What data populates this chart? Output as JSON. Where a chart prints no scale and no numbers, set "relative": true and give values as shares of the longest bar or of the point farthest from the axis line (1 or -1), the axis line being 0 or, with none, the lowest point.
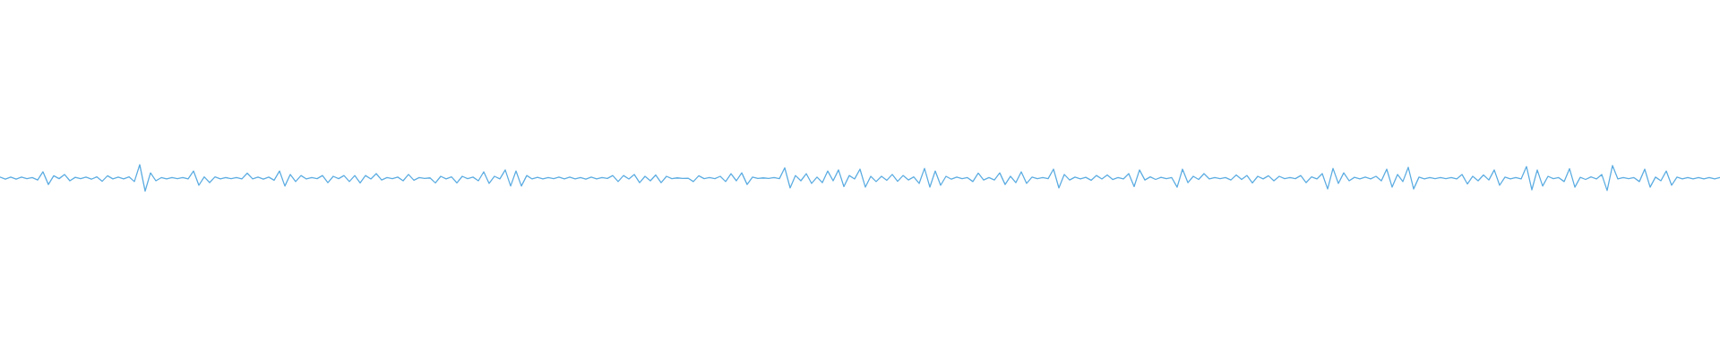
{
  "chart_data": {
    "type": "line",
    "relative": true,
    "color": "#5dade2",
    "categories": [
      null,
      null,
      null,
      null,
      null,
      null,
      null,
      null,
      null,
      null,
      null,
      null,
      null,
      null,
      null,
      null,
      null,
      null,
      null,
      null,
      null,
      null,
      null,
      null,
      null,
      null,
      null,
      null,
      null,
      null,
      null,
      null,
      null,
      null,
      null,
      null,
      null,
      null,
      null,
      null,
      null,
      null,
      null,
      null,
      null,
      null,
      null,
      null,
      null,
      null,
      null,
      null,
      null,
      null,
      null,
      null,
      null,
      null,
      null,
      null,
      null,
      null,
      null,
      null,
      null,
      null,
      null,
      null,
      null,
      null,
      null,
      null,
      null,
      null,
      null,
      null,
      null,
      null,
      null,
      null,
      null,
      null,
      null,
      null,
      null,
      null,
      null,
      null,
      null,
      null,
      null,
      null,
      null,
      null,
      null,
      null,
      null,
      null,
      null,
      null,
      null,
      null,
      null,
      null,
      null,
      null,
      null,
      null,
      null,
      null,
      null,
      null,
      null,
      null,
      null,
      null,
      null,
      null,
      null,
      null,
      null,
      null,
      null,
      null,
      null,
      null,
      null,
      null,
      null,
      null,
      null,
      null,
      null,
      null,
      null,
      null,
      null,
      null,
      null,
      null,
      null,
      null,
      null,
      null,
      null,
      null,
      null,
      null,
      null,
      null,
      null,
      null,
      null,
      null,
      null,
      null,
      null,
      null,
      null,
      null,
      null,
      null,
      null,
      null,
      null,
      null,
      null,
      null,
      null,
      null,
      null,
      null,
      null,
      null,
      null,
      null,
      null,
      null,
      null,
      null,
      null,
      null,
      null,
      null,
      null,
      null,
      null,
      null,
      null,
      null,
      null,
      null,
      null,
      null,
      null,
      null,
      null,
      null,
      null,
      null,
      null,
      null,
      null,
      null,
      null,
      null,
      null,
      null,
      null,
      null,
      null,
      null,
      null,
      null,
      null,
      null,
      null,
      null,
      null,
      null,
      null,
      null,
      null,
      null,
      null,
      null,
      null,
      null,
      null,
      null,
      null,
      null,
      null,
      null,
      null,
      null,
      null,
      null,
      null,
      null,
      null,
      null,
      null,
      null,
      null,
      null,
      null,
      null,
      null,
      null,
      null,
      null,
      null,
      null,
      null,
      null,
      null,
      null,
      null,
      null,
      null,
      null,
      null,
      null,
      null,
      null,
      null,
      null,
      null,
      null,
      null,
      null,
      null,
      null,
      null,
      null,
      null,
      null,
      null,
      null,
      null,
      null,
      null,
      null,
      null,
      null,
      null,
      null,
      null,
      null,
      null,
      null,
      null,
      null,
      null,
      null,
      null,
      null,
      null,
      null,
      null,
      null,
      null,
      null,
      null,
      null,
      null,
      null,
      null,
      null,
      null,
      null,
      null,
      null,
      null,
      null,
      null,
      null,
      null,
      null,
      null
    ],
    "values": [
      0.53,
      0.45,
      0.53,
      0.45,
      0.53,
      0.47,
      0.51,
      0.42,
      0.73,
      0.25,
      0.58,
      0.47,
      0.63,
      0.39,
      0.52,
      0.47,
      0.53,
      0.45,
      0.54,
      0.37,
      0.58,
      0.46,
      0.53,
      0.46,
      0.54,
      0.36,
      1.0,
      0.0,
      0.69,
      0.39,
      0.51,
      0.46,
      0.51,
      0.47,
      0.51,
      0.46,
      0.76,
      0.22,
      0.54,
      0.32,
      0.54,
      0.46,
      0.51,
      0.47,
      0.51,
      0.46,
      0.68,
      0.46,
      0.53,
      0.45,
      0.53,
      0.41,
      0.76,
      0.19,
      0.63,
      0.36,
      0.59,
      0.46,
      0.51,
      0.47,
      0.59,
      0.32,
      0.56,
      0.47,
      0.59,
      0.36,
      0.59,
      0.31,
      0.59,
      0.46,
      0.66,
      0.42,
      0.51,
      0.47,
      0.53,
      0.39,
      0.63,
      0.41,
      0.51,
      0.48,
      0.5,
      0.31,
      0.56,
      0.46,
      0.54,
      0.31,
      0.56,
      0.47,
      0.53,
      0.39,
      0.73,
      0.29,
      0.56,
      0.46,
      0.8,
      0.19,
      0.76,
      0.19,
      0.59,
      0.46,
      0.52,
      0.46,
      0.51,
      0.47,
      0.53,
      0.46,
      0.53,
      0.46,
      0.51,
      0.45,
      0.53,
      0.46,
      0.51,
      0.48,
      0.59,
      0.36,
      0.59,
      0.46,
      0.63,
      0.32,
      0.56,
      0.39,
      0.61,
      0.32,
      0.56,
      0.47,
      0.5,
      0.48,
      0.49,
      0.36,
      0.58,
      0.47,
      0.51,
      0.47,
      0.56,
      0.36,
      0.66,
      0.39,
      0.69,
      0.25,
      0.53,
      0.48,
      0.5,
      0.48,
      0.51,
      0.47,
      0.88,
      0.12,
      0.59,
      0.39,
      0.66,
      0.29,
      0.53,
      0.32,
      0.76,
      0.39,
      0.8,
      0.17,
      0.59,
      0.46,
      0.83,
      0.15,
      0.56,
      0.36,
      0.56,
      0.41,
      0.63,
      0.37,
      0.59,
      0.42,
      0.54,
      0.29,
      0.86,
      0.15,
      0.76,
      0.22,
      0.56,
      0.45,
      0.53,
      0.47,
      0.51,
      0.36,
      0.68,
      0.42,
      0.51,
      0.42,
      0.69,
      0.25,
      0.56,
      0.32,
      0.73,
      0.29,
      0.53,
      0.47,
      0.51,
      0.47,
      0.83,
      0.12,
      0.63,
      0.42,
      0.53,
      0.46,
      0.52,
      0.41,
      0.59,
      0.46,
      0.61,
      0.44,
      0.51,
      0.46,
      0.66,
      0.17,
      0.8,
      0.42,
      0.54,
      0.44,
      0.52,
      0.47,
      0.51,
      0.15,
      0.83,
      0.32,
      0.56,
      0.44,
      0.66,
      0.46,
      0.51,
      0.47,
      0.51,
      0.42,
      0.61,
      0.44,
      0.59,
      0.31,
      0.56,
      0.46,
      0.58,
      0.39,
      0.56,
      0.47,
      0.51,
      0.47,
      0.59,
      0.32,
      0.54,
      0.46,
      0.66,
      0.08,
      0.86,
      0.29,
      0.69,
      0.39,
      0.52,
      0.46,
      0.53,
      0.46,
      0.56,
      0.39,
      0.83,
      0.15,
      0.63,
      0.36,
      0.9,
      0.08,
      0.53,
      0.46,
      0.51,
      0.47,
      0.51,
      0.47,
      0.51,
      0.46,
      0.63,
      0.27,
      0.56,
      0.39,
      0.61,
      0.42,
      0.8,
      0.22,
      0.53,
      0.46,
      0.51,
      0.46,
      0.93,
      0.05,
      0.8,
      0.19,
      0.56,
      0.47,
      0.51,
      0.36,
      0.85,
      0.15,
      0.52,
      0.44,
      0.54,
      0.46,
      0.63,
      0.02,
      0.97,
      0.46,
      0.51,
      0.47,
      0.51,
      0.36,
      0.83,
      0.15,
      0.53,
      0.39,
      0.76,
      0.22,
      0.53,
      0.46,
      0.51,
      0.46,
      0.51,
      0.46,
      0.51,
      0.46,
      0.51
    ]
  }
}
